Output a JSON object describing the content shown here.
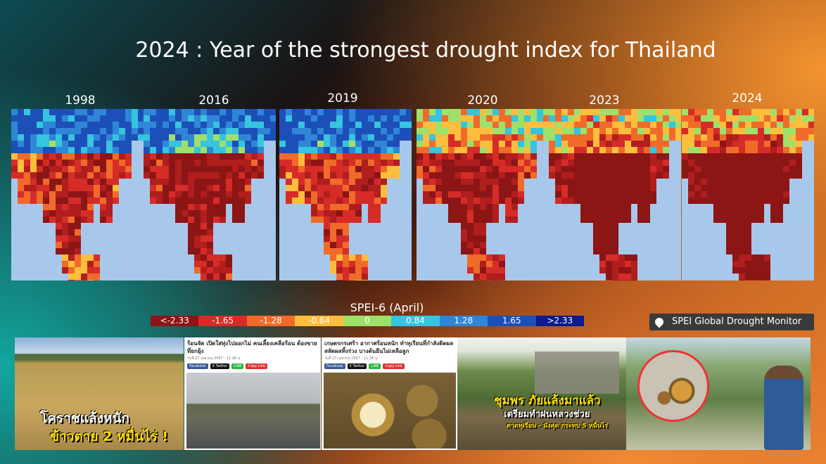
{
  "title": "2024 : Year of the strongest drought index for Thailand",
  "years": [
    "1998",
    "2016",
    "2019",
    "2020",
    "2023",
    "2024"
  ],
  "legend": {
    "title": "SPEI-6 (April)",
    "bins": [
      {
        "label": "<-2.33",
        "color": "#8c1515"
      },
      {
        "label": "-1.65",
        "color": "#d62c28"
      },
      {
        "label": "-1.28",
        "color": "#f06b2a"
      },
      {
        "label": "-0.84",
        "color": "#fdbd3d"
      },
      {
        "label": "0",
        "color": "#9fe06a"
      },
      {
        "label": "0.84",
        "color": "#36c4de"
      },
      {
        "label": "1.28",
        "color": "#2f86d6"
      },
      {
        "label": "1.65",
        "color": "#1d4fb8"
      },
      {
        "label": ">2.33",
        "color": "#0c1a8a"
      }
    ]
  },
  "badge": "SPEI Global Drought Monitor",
  "news": {
    "korat_caption_1": "โคราชแล้งหนัก",
    "korat_caption_2": "ข้าวตาย 2 หมื่นไร่ !",
    "article1_headline": "ร้อนจัด เปิดใส่ทุ่งไปออกไม่ คนเลี้ยงเคลือร้อน ต้องขาย ที่ยกยุ้ง",
    "article1_meta": "วันที่ 27 เมษายน 2567 - 11:08 น.",
    "article2_headline": "เกษตรกรเศร้า อากาศร้อนหนัก ทำทุเรียนที่กำลังติดผล สลัดผลทิ้งร่วง บางต้นยืนไม่เหลือลูก",
    "article2_meta": "วันที่ 27 เมษายน 2567 - 11:28 น.",
    "share_buttons": [
      "Facebook",
      "X Twitter",
      "LINE",
      "Copy Link"
    ],
    "chumphon_title": "ชุมพร ภัยแล้งมาแล้ว",
    "chumphon_sub": "เตรียมทำฝนหลวงช่วย",
    "chumphon_sub2": "ตาดทุเรียน - มังคุด กระทบ 5 หมื่นไร่"
  }
}
